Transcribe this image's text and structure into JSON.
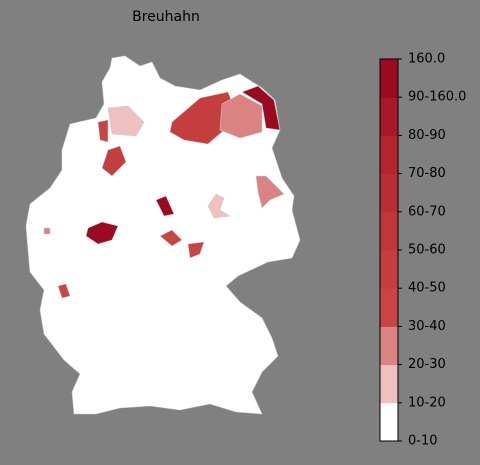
{
  "title": "Breuhahn",
  "legend": {
    "labels": [
      "0-10",
      "10-20",
      "20-30",
      "30-40",
      "40-50",
      "50-60",
      "60-70",
      "70-80",
      "80-90",
      "90-160.0",
      "160.0"
    ],
    "colors": [
      "#ffffff",
      "#efc0c0",
      "#db8282",
      "#c94545",
      "#c43e40",
      "#bf363b",
      "#b92d36",
      "#b22430",
      "#a9182a",
      "#9c0a22"
    ]
  }
}
